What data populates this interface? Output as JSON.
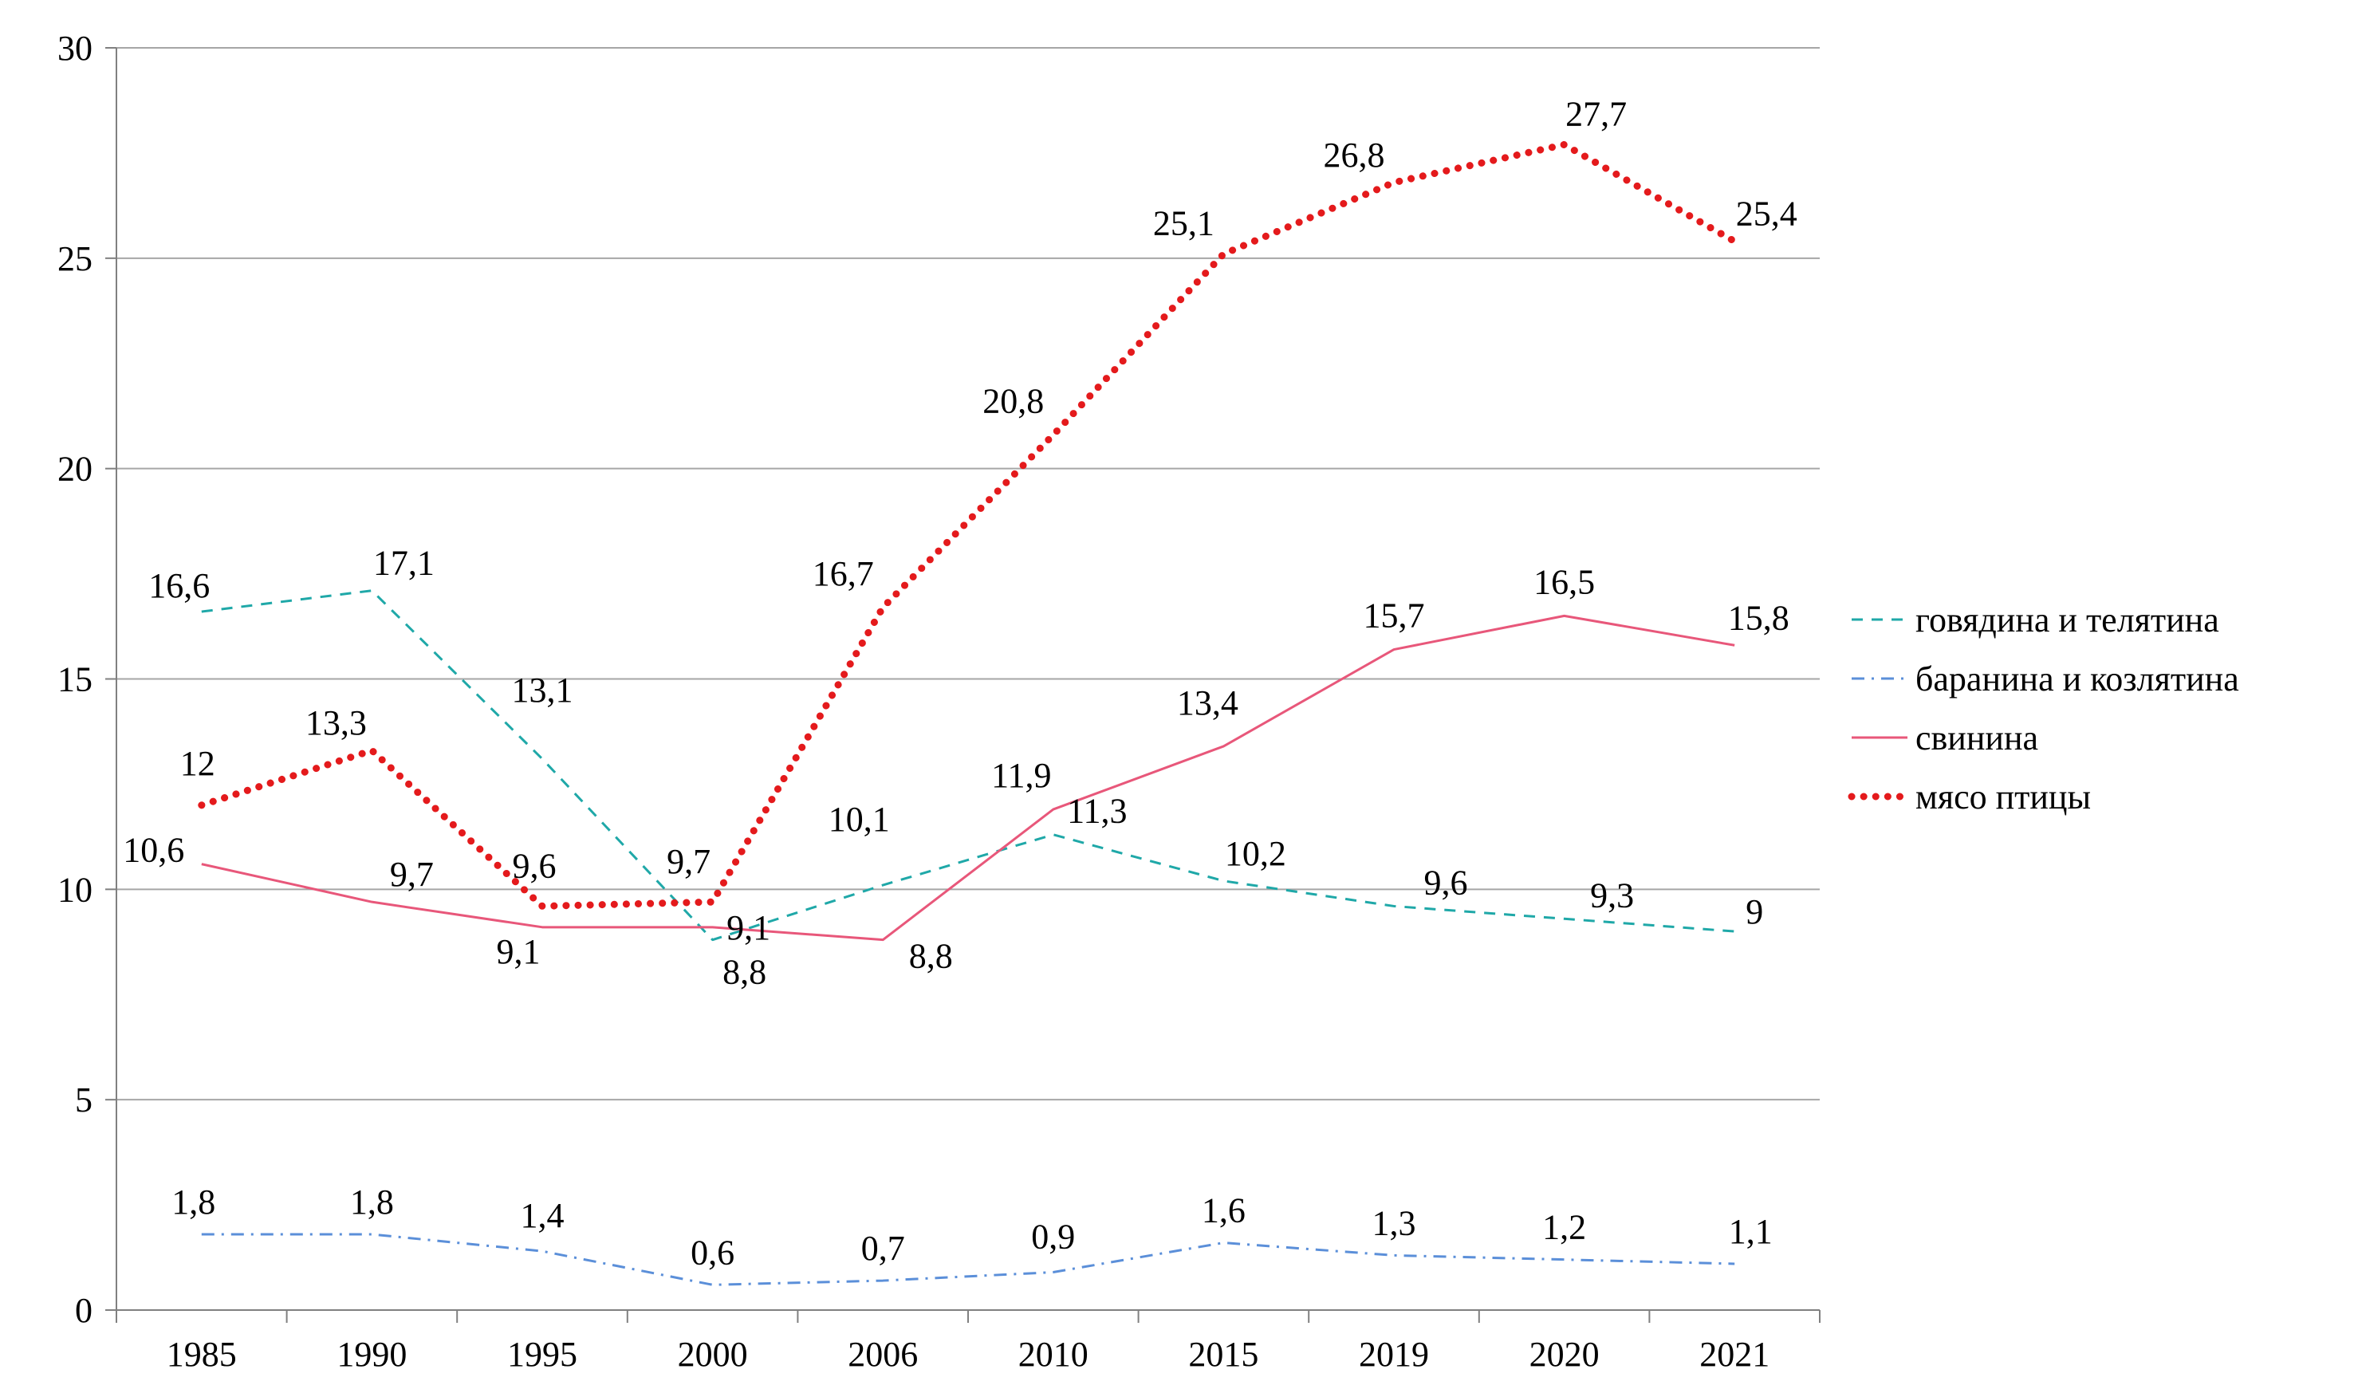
{
  "chart_data": {
    "type": "line",
    "title": "",
    "xlabel": "",
    "ylabel": "",
    "categories": [
      "1985",
      "1990",
      "1995",
      "2000",
      "2006",
      "2010",
      "2015",
      "2019",
      "2020",
      "2021"
    ],
    "ylim": [
      0,
      30
    ],
    "yticks": [
      "0",
      "5",
      "10",
      "15",
      "20",
      "25",
      "30"
    ],
    "grid": "horizontal",
    "legend_position": "right",
    "series": [
      {
        "name": "говядина и телятина",
        "values": [
          16.6,
          17.1,
          13.1,
          8.8,
          10.1,
          11.3,
          10.2,
          9.6,
          9.3,
          9
        ],
        "labels": [
          "16,6",
          "17,1",
          "13,1",
          "8,8",
          "10,1",
          "11,3",
          "10,2",
          "9,6",
          "9,3",
          "9"
        ],
        "color": "#1fa8a8",
        "style": "dashed"
      },
      {
        "name": "баранина и козлятина",
        "values": [
          1.8,
          1.8,
          1.4,
          0.6,
          0.7,
          0.9,
          1.6,
          1.3,
          1.2,
          1.1
        ],
        "labels": [
          "1,8",
          "1,8",
          "1,4",
          "0,6",
          "0,7",
          "0,9",
          "1,6",
          "1,3",
          "1,2",
          "1,1"
        ],
        "color": "#5b8fd9",
        "style": "dashdot"
      },
      {
        "name": "свинина",
        "values": [
          10.6,
          9.7,
          9.1,
          9.1,
          8.8,
          11.9,
          13.4,
          15.7,
          16.5,
          15.8
        ],
        "labels": [
          "10,6",
          "9,7",
          "9,1",
          "9,1",
          "8,8",
          "11,9",
          "13,4",
          "15,7",
          "16,5",
          "15,8"
        ],
        "color": "#e8577a",
        "style": "solid"
      },
      {
        "name": "мясо птицы",
        "values": [
          12,
          13.3,
          9.6,
          9.7,
          16.7,
          20.8,
          25.1,
          26.8,
          27.7,
          25.4
        ],
        "labels": [
          "12",
          "13,3",
          "9,6",
          "9,7",
          "16,7",
          "20,8",
          "25,1",
          "26,8",
          "27,7",
          "25,4"
        ],
        "color": "#e41a1c",
        "style": "dotted"
      }
    ]
  }
}
